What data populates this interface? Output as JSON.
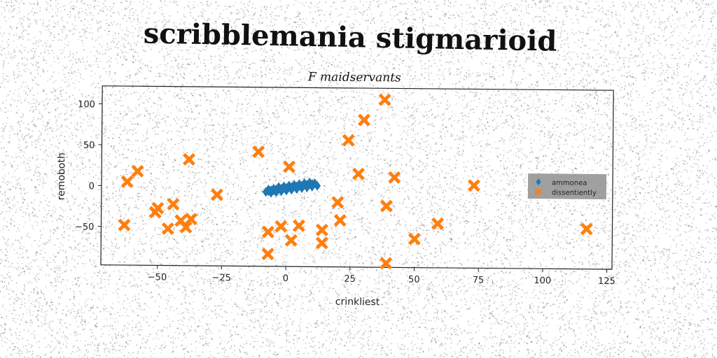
{
  "page": {
    "title": "scribblemania stigmarioid",
    "subtitle": "F maidservants"
  },
  "chart_data": {
    "type": "scatter",
    "title": "F maidservants",
    "xlabel": "crinkliest",
    "ylabel": "remoboth",
    "xlim": [
      -72,
      127
    ],
    "ylim": [
      -97,
      122
    ],
    "xticks": [
      -50,
      -25,
      0,
      25,
      50,
      75,
      100,
      125
    ],
    "yticks": [
      -50,
      0,
      50,
      100
    ],
    "grid": false,
    "legend_position": "right",
    "series": [
      {
        "name": "ammonea",
        "color": "#1f77b4",
        "marker": "diamond",
        "points": [
          [
            -8,
            -6
          ],
          [
            -7,
            -5
          ],
          [
            -6,
            -4
          ],
          [
            -5,
            -4
          ],
          [
            -4,
            -3
          ],
          [
            -3,
            -2
          ],
          [
            -2,
            -2
          ],
          [
            -1,
            -1
          ],
          [
            0,
            -1
          ],
          [
            1,
            0
          ],
          [
            2,
            0
          ],
          [
            3,
            1
          ],
          [
            4,
            1
          ],
          [
            5,
            2
          ],
          [
            6,
            2
          ],
          [
            7,
            3
          ],
          [
            8,
            3
          ],
          [
            9,
            4
          ],
          [
            10,
            4
          ],
          [
            11,
            5
          ],
          [
            -7,
            -3
          ],
          [
            -5,
            -2
          ],
          [
            -3,
            0
          ],
          [
            -1,
            1
          ],
          [
            1,
            2
          ],
          [
            3,
            3
          ],
          [
            5,
            4
          ],
          [
            7,
            5
          ],
          [
            9,
            6
          ],
          [
            -6,
            -7
          ],
          [
            -4,
            -6
          ],
          [
            -2,
            -5
          ],
          [
            0,
            -4
          ],
          [
            2,
            -3
          ],
          [
            4,
            -2
          ],
          [
            6,
            -1
          ],
          [
            8,
            0
          ],
          [
            10,
            1
          ],
          [
            12,
            2
          ]
        ]
      },
      {
        "name": "dissentiently",
        "color": "#ff7f0e",
        "marker": "X",
        "points": [
          [
            -62,
            5
          ],
          [
            -58,
            18
          ],
          [
            -63,
            -48
          ],
          [
            -50,
            -27
          ],
          [
            -51,
            -32
          ],
          [
            -44,
            -22
          ],
          [
            -46,
            -52
          ],
          [
            -41,
            -42
          ],
          [
            -39,
            -50
          ],
          [
            -37,
            -40
          ],
          [
            -38,
            33
          ],
          [
            -27,
            -10
          ],
          [
            -11,
            43
          ],
          [
            -7,
            -55
          ],
          [
            -7,
            -82
          ],
          [
            -2,
            -48
          ],
          [
            1,
            25
          ],
          [
            2,
            -65
          ],
          [
            5,
            -47
          ],
          [
            14,
            -52
          ],
          [
            14,
            -68
          ],
          [
            20,
            -18
          ],
          [
            21,
            -40
          ],
          [
            24,
            58
          ],
          [
            28,
            17
          ],
          [
            30,
            83
          ],
          [
            38,
            108
          ],
          [
            39,
            -22
          ],
          [
            39,
            -92
          ],
          [
            42,
            13
          ],
          [
            50,
            -62
          ],
          [
            59,
            -43
          ],
          [
            73,
            4
          ],
          [
            117,
            -48
          ]
        ]
      }
    ]
  }
}
